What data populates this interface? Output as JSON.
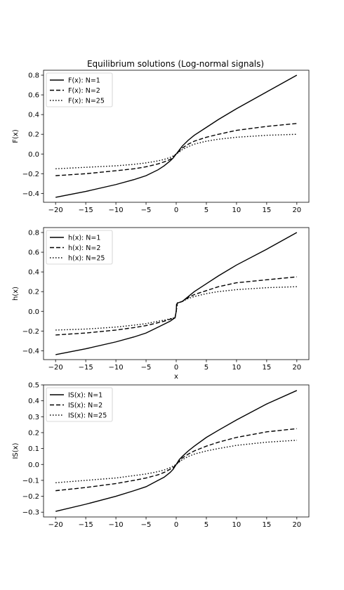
{
  "figure": {
    "title": "Equilibrium solutions (Log-normal signals)"
  },
  "chart_data": [
    {
      "type": "line",
      "title": "Equilibrium solutions (Log-normal signals)",
      "xlabel": "",
      "ylabel": "F(x)",
      "xlim": [
        -22,
        22
      ],
      "ylim": [
        -0.49,
        0.85
      ],
      "xticks": [
        -20,
        -15,
        -10,
        -5,
        0,
        5,
        10,
        15,
        20
      ],
      "xtick_labels": [
        "−20",
        "−15",
        "−10",
        "−5",
        "0",
        "5",
        "10",
        "15",
        "20"
      ],
      "yticks": [
        -0.4,
        -0.2,
        0.0,
        0.2,
        0.4,
        0.6,
        0.8
      ],
      "ytick_labels": [
        "−0.4",
        "−0.2",
        "0.0",
        "0.2",
        "0.4",
        "0.6",
        "0.8"
      ],
      "grid": false,
      "legend": "upper-left",
      "series": [
        {
          "name": "F(x): N=1",
          "style": "solid",
          "x": [
            -20,
            -15,
            -10,
            -7,
            -5,
            -3,
            -2,
            -1,
            -0.5,
            0,
            0.5,
            1,
            2,
            3,
            5,
            7,
            10,
            15,
            20
          ],
          "y": [
            -0.44,
            -0.38,
            -0.31,
            -0.26,
            -0.22,
            -0.16,
            -0.12,
            -0.07,
            -0.04,
            0.0,
            0.04,
            0.08,
            0.14,
            0.19,
            0.27,
            0.35,
            0.46,
            0.63,
            0.8
          ]
        },
        {
          "name": "F(x): N=2",
          "style": "dashed",
          "x": [
            -20,
            -15,
            -10,
            -7,
            -5,
            -3,
            -2,
            -1,
            -0.5,
            0,
            0.5,
            1,
            2,
            3,
            5,
            7,
            10,
            15,
            20
          ],
          "y": [
            -0.22,
            -0.2,
            -0.17,
            -0.15,
            -0.13,
            -0.1,
            -0.08,
            -0.055,
            -0.03,
            0.0,
            0.03,
            0.06,
            0.1,
            0.13,
            0.17,
            0.2,
            0.24,
            0.28,
            0.31
          ]
        },
        {
          "name": "F(x): N=25",
          "style": "dotted",
          "x": [
            -20,
            -15,
            -10,
            -7,
            -5,
            -3,
            -2,
            -1,
            -0.5,
            0,
            0.5,
            1,
            2,
            3,
            5,
            7,
            10,
            15,
            20
          ],
          "y": [
            -0.15,
            -0.135,
            -0.12,
            -0.105,
            -0.09,
            -0.07,
            -0.055,
            -0.035,
            -0.02,
            0.0,
            0.02,
            0.045,
            0.075,
            0.1,
            0.13,
            0.15,
            0.17,
            0.19,
            0.2
          ]
        }
      ]
    },
    {
      "type": "line",
      "title": "",
      "xlabel": "x",
      "ylabel": "h(x)",
      "xlim": [
        -22,
        22
      ],
      "ylim": [
        -0.49,
        0.85
      ],
      "xticks": [
        -20,
        -15,
        -10,
        -5,
        0,
        5,
        10,
        15,
        20
      ],
      "xtick_labels": [
        "−20",
        "−15",
        "−10",
        "−5",
        "0",
        "5",
        "10",
        "15",
        "20"
      ],
      "yticks": [
        -0.4,
        -0.2,
        0.0,
        0.2,
        0.4,
        0.6,
        0.8
      ],
      "ytick_labels": [
        "−0.4",
        "−0.2",
        "0.0",
        "0.2",
        "0.4",
        "0.6",
        "0.8"
      ],
      "grid": false,
      "legend": "upper-left",
      "series": [
        {
          "name": "h(x): N=1",
          "style": "solid",
          "x": [
            -20,
            -15,
            -10,
            -7,
            -5,
            -3,
            -2,
            -1,
            -0.2,
            -0.2,
            0,
            0.05,
            0.2,
            0.5,
            1,
            2,
            3,
            5,
            7,
            10,
            15,
            20
          ],
          "y": [
            -0.44,
            -0.38,
            -0.31,
            -0.26,
            -0.22,
            -0.16,
            -0.13,
            -0.1,
            -0.065,
            -0.07,
            0.0,
            0.07,
            0.085,
            0.09,
            0.1,
            0.15,
            0.2,
            0.28,
            0.36,
            0.47,
            0.63,
            0.8
          ]
        },
        {
          "name": "h(x): N=2",
          "style": "dashed",
          "x": [
            -20,
            -15,
            -10,
            -7,
            -5,
            -3,
            -2,
            -1,
            -0.2,
            0,
            0.2,
            0.5,
            1,
            2,
            3,
            5,
            7,
            10,
            15,
            20
          ],
          "y": [
            -0.24,
            -0.22,
            -0.19,
            -0.165,
            -0.145,
            -0.115,
            -0.1,
            -0.08,
            -0.065,
            0.0,
            0.085,
            0.09,
            0.1,
            0.14,
            0.17,
            0.21,
            0.25,
            0.29,
            0.32,
            0.35
          ]
        },
        {
          "name": "h(x): N=25",
          "style": "dotted",
          "x": [
            -20,
            -15,
            -10,
            -7,
            -5,
            -3,
            -2,
            -1,
            -0.2,
            0,
            0.2,
            0.5,
            1,
            2,
            3,
            5,
            7,
            10,
            15,
            20
          ],
          "y": [
            -0.19,
            -0.18,
            -0.16,
            -0.14,
            -0.125,
            -0.1,
            -0.09,
            -0.075,
            -0.065,
            0.0,
            0.085,
            0.09,
            0.1,
            0.13,
            0.15,
            0.18,
            0.2,
            0.22,
            0.24,
            0.25
          ]
        }
      ]
    },
    {
      "type": "line",
      "title": "",
      "xlabel": "",
      "ylabel": "IS(x)",
      "xlim": [
        -22,
        22
      ],
      "ylim": [
        -0.33,
        0.5
      ],
      "xticks": [
        -20,
        -15,
        -10,
        -5,
        0,
        5,
        10,
        15,
        20
      ],
      "xtick_labels": [
        "−20",
        "−15",
        "−10",
        "−5",
        "0",
        "5",
        "10",
        "15",
        "20"
      ],
      "yticks": [
        -0.3,
        -0.2,
        -0.1,
        0.0,
        0.1,
        0.2,
        0.3,
        0.4,
        0.5
      ],
      "ytick_labels": [
        "−0.3",
        "−0.2",
        "−0.1",
        "0.0",
        "0.1",
        "0.2",
        "0.3",
        "0.4",
        "0.5"
      ],
      "grid": false,
      "legend": "upper-left",
      "series": [
        {
          "name": "IS(x): N=1",
          "style": "solid",
          "x": [
            -20,
            -15,
            -10,
            -7,
            -5,
            -3,
            -2,
            -1,
            -0.5,
            0,
            0.5,
            1,
            2,
            3,
            5,
            7,
            10,
            15,
            20
          ],
          "y": [
            -0.295,
            -0.25,
            -0.2,
            -0.165,
            -0.14,
            -0.1,
            -0.08,
            -0.05,
            -0.03,
            0.0,
            0.03,
            0.05,
            0.085,
            0.115,
            0.17,
            0.215,
            0.28,
            0.38,
            0.465
          ]
        },
        {
          "name": "IS(x): N=2",
          "style": "dashed",
          "x": [
            -20,
            -15,
            -10,
            -7,
            -5,
            -3,
            -2,
            -1,
            -0.5,
            0,
            0.5,
            1,
            2,
            3,
            5,
            7,
            10,
            15,
            20
          ],
          "y": [
            -0.165,
            -0.145,
            -0.12,
            -0.1,
            -0.085,
            -0.065,
            -0.05,
            -0.03,
            -0.02,
            0.0,
            0.02,
            0.04,
            0.065,
            0.085,
            0.115,
            0.14,
            0.17,
            0.205,
            0.225
          ]
        },
        {
          "name": "IS(x): N=25",
          "style": "dotted",
          "x": [
            -20,
            -15,
            -10,
            -7,
            -5,
            -3,
            -2,
            -1,
            -0.5,
            0,
            0.5,
            1,
            2,
            3,
            5,
            7,
            10,
            15,
            20
          ],
          "y": [
            -0.115,
            -0.1,
            -0.085,
            -0.07,
            -0.06,
            -0.045,
            -0.035,
            -0.02,
            -0.01,
            0.0,
            0.015,
            0.03,
            0.05,
            0.065,
            0.085,
            0.1,
            0.12,
            0.14,
            0.152
          ]
        }
      ]
    }
  ]
}
